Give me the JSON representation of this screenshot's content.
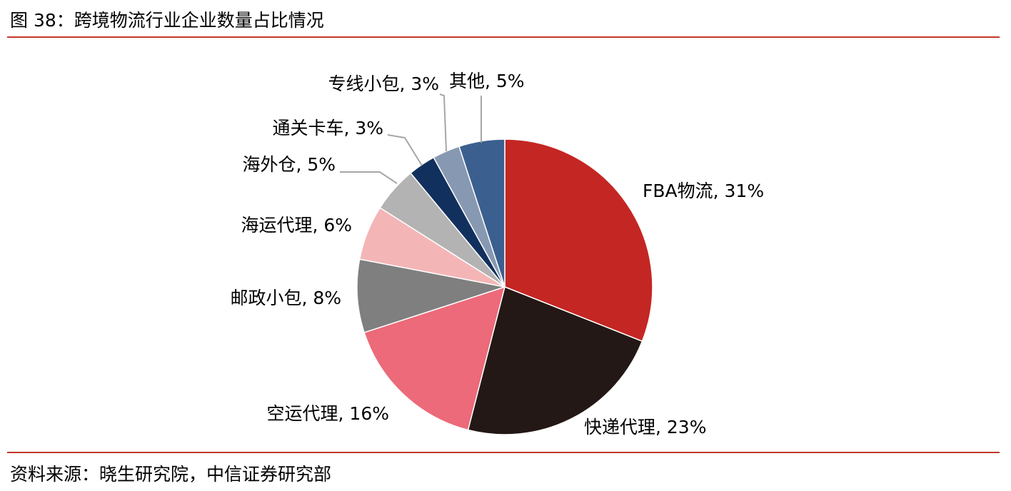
{
  "header": {
    "title": "图 38：跨境物流行业企业数量占比情况"
  },
  "footer": {
    "source": "资料来源：晓生研究院，中信证券研究部"
  },
  "chart_data": {
    "type": "pie",
    "start_angle_deg": 0,
    "direction": "clockwise",
    "slices": [
      {
        "label": "FBA物流, 31%",
        "name": "FBA物流",
        "value": 31,
        "color": "#c42623"
      },
      {
        "label": "快递代理, 23%",
        "name": "快递代理",
        "value": 23,
        "color": "#231815"
      },
      {
        "label": "空运代理, 16%",
        "name": "空运代理",
        "value": 16,
        "color": "#ec6a79"
      },
      {
        "label": "邮政小包, 8%",
        "name": "邮政小包",
        "value": 8,
        "color": "#7f7f7f"
      },
      {
        "label": "海运代理, 6%",
        "name": "海运代理",
        "value": 6,
        "color": "#f4b5b6"
      },
      {
        "label": "海外仓, 5%",
        "name": "海外仓",
        "value": 5,
        "color": "#b3b3b3"
      },
      {
        "label": "通关卡车, 3%",
        "name": "通关卡车",
        "value": 3,
        "color": "#12305d"
      },
      {
        "label": "专线小包, 3%",
        "name": "专线小包",
        "value": 3,
        "color": "#8799b2"
      },
      {
        "label": "其他, 5%",
        "name": "其他",
        "value": 5,
        "color": "#3b5f8f"
      }
    ]
  }
}
